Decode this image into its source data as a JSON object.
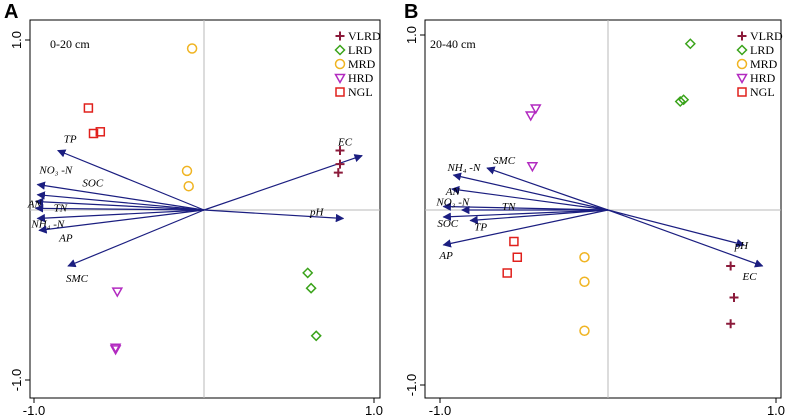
{
  "chart_data": [
    {
      "type": "scatter",
      "subtype": "biplot",
      "panel": "A",
      "depth_label": "0-20 cm",
      "xlim": [
        -1.0,
        1.0
      ],
      "ylim": [
        -1.0,
        1.0
      ],
      "x_tick_labels": [
        "-1.0",
        "1.0"
      ],
      "y_tick_labels": [
        "1.0",
        "-1.0"
      ],
      "legend": {
        "position": "top-right",
        "entries": [
          "VLRD",
          "LRD",
          "MRD",
          "HRD",
          "NGL"
        ]
      },
      "series": [
        {
          "name": "VLRD",
          "marker": "plus",
          "color": "#8b1a3a",
          "points": [
            [
              0.8,
              0.35
            ],
            [
              0.8,
              0.27
            ],
            [
              0.79,
              0.22
            ]
          ]
        },
        {
          "name": "LRD",
          "marker": "diamond",
          "color": "#3aa31a",
          "points": [
            [
              0.61,
              -0.37
            ],
            [
              0.63,
              -0.46
            ],
            [
              0.66,
              -0.74
            ]
          ]
        },
        {
          "name": "MRD",
          "marker": "circle",
          "color": "#f0b422",
          "points": [
            [
              -0.07,
              0.95
            ],
            [
              -0.1,
              0.23
            ],
            [
              -0.09,
              0.14
            ]
          ]
        },
        {
          "name": "HRD",
          "marker": "triangle-down",
          "color": "#b22ac0",
          "points": [
            [
              -0.51,
              -0.48
            ],
            [
              -0.52,
              -0.82
            ],
            [
              -0.52,
              -0.81
            ]
          ]
        },
        {
          "name": "NGL",
          "marker": "square",
          "color": "#e0201c",
          "points": [
            [
              -0.68,
              0.6
            ],
            [
              -0.65,
              0.45
            ],
            [
              -0.61,
              0.46
            ]
          ]
        }
      ],
      "vectors": [
        {
          "label": "TP",
          "x": -0.86,
          "y": 0.35
        },
        {
          "label": "NO₃ -N",
          "x": -0.98,
          "y": 0.15
        },
        {
          "label": "SOC",
          "x": -0.98,
          "y": 0.09
        },
        {
          "label": "AN",
          "x": -0.99,
          "y": 0.05
        },
        {
          "label": "TN",
          "x": -0.99,
          "y": 0.01
        },
        {
          "label": "NH₄ -N",
          "x": -0.98,
          "y": -0.05
        },
        {
          "label": "AP",
          "x": -0.97,
          "y": -0.12
        },
        {
          "label": "SMC",
          "x": -0.8,
          "y": -0.33
        },
        {
          "label": "EC",
          "x": 0.93,
          "y": 0.32
        },
        {
          "label": "pH",
          "x": 0.82,
          "y": -0.05
        }
      ]
    },
    {
      "type": "scatter",
      "subtype": "biplot",
      "panel": "B",
      "depth_label": "20-40 cm",
      "xlim": [
        -1.0,
        1.0
      ],
      "ylim": [
        -1.0,
        1.0
      ],
      "x_tick_labels": [
        "-1.0",
        "1.0"
      ],
      "y_tick_labels": [
        "1.0",
        "-1.0"
      ],
      "legend": {
        "position": "top-right",
        "entries": [
          "VLRD",
          "LRD",
          "MRD",
          "HRD",
          "NGL"
        ]
      },
      "series": [
        {
          "name": "VLRD",
          "marker": "plus",
          "color": "#8b1a3a",
          "points": [
            [
              0.73,
              -0.32
            ],
            [
              0.75,
              -0.5
            ],
            [
              0.73,
              -0.65
            ]
          ]
        },
        {
          "name": "LRD",
          "marker": "diamond",
          "color": "#3aa31a",
          "points": [
            [
              0.49,
              0.95
            ],
            [
              0.43,
              0.62
            ],
            [
              0.45,
              0.63
            ]
          ]
        },
        {
          "name": "MRD",
          "marker": "circle",
          "color": "#f0b422",
          "points": [
            [
              -0.14,
              -0.27
            ],
            [
              -0.14,
              -0.41
            ],
            [
              -0.14,
              -0.69
            ]
          ]
        },
        {
          "name": "HRD",
          "marker": "triangle-down",
          "color": "#b22ac0",
          "points": [
            [
              -0.46,
              0.54
            ],
            [
              -0.43,
              0.58
            ],
            [
              -0.45,
              0.25
            ]
          ]
        },
        {
          "name": "NGL",
          "marker": "square",
          "color": "#e0201c",
          "points": [
            [
              -0.56,
              -0.18
            ],
            [
              -0.54,
              -0.27
            ],
            [
              -0.6,
              -0.36
            ]
          ]
        }
      ],
      "vectors": [
        {
          "label": "SMC",
          "x": -0.72,
          "y": 0.24
        },
        {
          "label": "NH₄ -N",
          "x": -0.92,
          "y": 0.2
        },
        {
          "label": "AN",
          "x": -0.93,
          "y": 0.12
        },
        {
          "label": "NO₃ -N",
          "x": -0.98,
          "y": 0.02
        },
        {
          "label": "TN",
          "x": -0.87,
          "y": 0.0
        },
        {
          "label": "SOC",
          "x": -0.98,
          "y": -0.04
        },
        {
          "label": "TP",
          "x": -0.82,
          "y": -0.06
        },
        {
          "label": "AP",
          "x": -0.98,
          "y": -0.2
        },
        {
          "label": "pH",
          "x": 0.81,
          "y": -0.2
        },
        {
          "label": "EC",
          "x": 0.92,
          "y": -0.32
        }
      ]
    }
  ]
}
